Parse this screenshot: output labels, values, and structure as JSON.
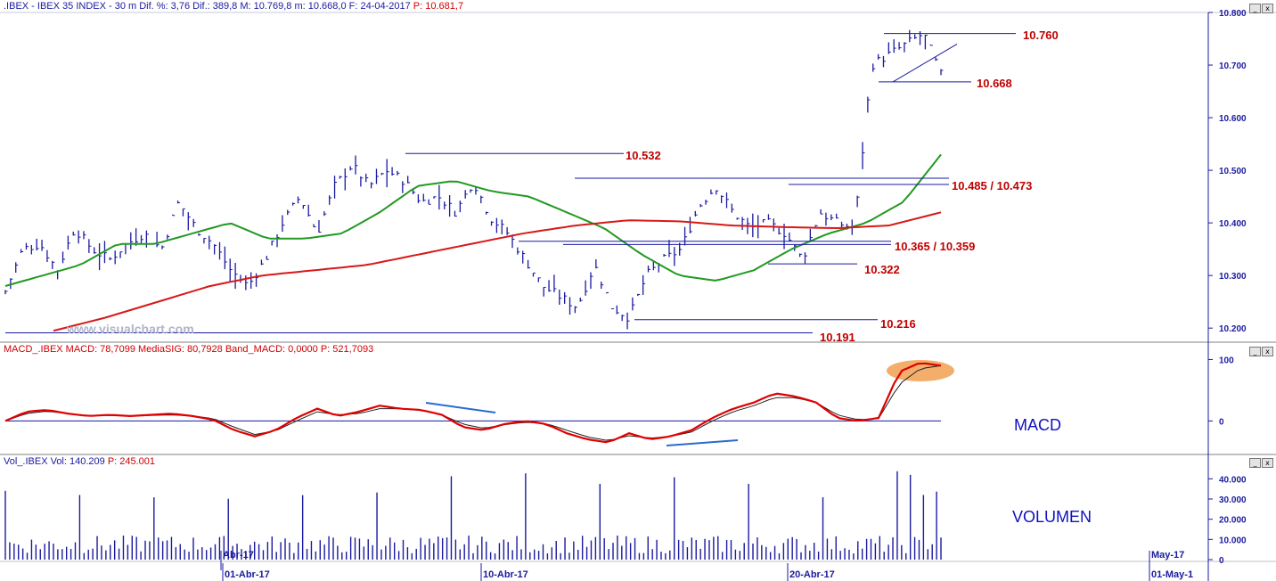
{
  "header": {
    "main": ".IBEX - IBEX 35 INDEX - 30 m Dif. %: 3,76 Dif.: 389,8 M: 10.769,8 m: 10.668,0 F: 24-04-2017",
    "last": "P: 10.681,7",
    "macd": "MACD_.IBEX MACD: 78,7099 MediaSIG: 80,7928 Band_MACD: 0,0000",
    "macd_last": "P: 521,7093",
    "vol": "Vol_.IBEX Vol: 140.209",
    "vol_last": "P: 245.001"
  },
  "watermark": "www.visualchart.com",
  "panel_labels": {
    "macd": "MACD",
    "volume": "VOLUMEN"
  },
  "window_buttons": {
    "minimize": "_",
    "close": "x"
  },
  "colors": {
    "axis": "#1a1aa0",
    "sma_short": "#229922",
    "sma_long": "#d81818",
    "macd": "#e00000",
    "macd_signal": "#222222",
    "annotation": "#c00000",
    "highlight": "#f0a050"
  },
  "chart_data": [
    {
      "type": "line",
      "panel": "price",
      "ylim": [
        10180,
        10800
      ],
      "y_ticks": [
        "10.800",
        "10.700",
        "10.600",
        "10.500",
        "10.400",
        "10.300",
        "10.200"
      ],
      "x_ticks": [
        "Abr-17",
        "01-Abr-17",
        "10-Abr-17",
        "20-Abr-17",
        "May-17",
        "01-May-1"
      ],
      "series": [
        {
          "kind": "ohlc-bars",
          "closes_keypoints": [
            10270,
            10350,
            10360,
            10310,
            10390,
            10350,
            10330,
            10360,
            10380,
            10350,
            10440,
            10390,
            10360,
            10310,
            10280,
            10330,
            10400,
            10450,
            10380,
            10470,
            10510,
            10470,
            10500,
            10480,
            10440,
            10450,
            10420,
            10480,
            10410,
            10380,
            10330,
            10280,
            10260,
            10240,
            10320,
            10240,
            10220,
            10300,
            10330,
            10350,
            10430,
            10470,
            10420,
            10390,
            10400,
            10380,
            10330,
            10420,
            10400,
            10390,
            10700,
            10720,
            10740,
            10760,
            10681.7
          ]
        },
        {
          "kind": "sma",
          "values": [
            10280,
            10300,
            10320,
            10360,
            10360,
            10380,
            10400,
            10370,
            10370,
            10380,
            10420,
            10470,
            10480,
            10460,
            10450,
            10420,
            10390,
            10340,
            10300,
            10290,
            10310,
            10350,
            10380,
            10400,
            10440,
            10530
          ]
        },
        {
          "kind": "sma",
          "values": [
            10195,
            10220,
            10250,
            10280,
            10300,
            10310,
            10320,
            10340,
            10360,
            10380,
            10395,
            10405,
            10403,
            10395,
            10392,
            10390,
            10395,
            10420
          ]
        }
      ],
      "levels": [
        {
          "value": 10760,
          "label": "10.760"
        },
        {
          "value": 10668,
          "label": "10.668"
        },
        {
          "value": 10532,
          "label": "10.532"
        },
        {
          "value": 10485,
          "label": "10.485 / 10.473"
        },
        {
          "value": 10473,
          "label": ""
        },
        {
          "value": 10365,
          "label": "10.365 / 10.359"
        },
        {
          "value": 10359,
          "label": ""
        },
        {
          "value": 10322,
          "label": "10.322"
        },
        {
          "value": 10216,
          "label": "10.216"
        },
        {
          "value": 10191,
          "label": "10.191"
        }
      ]
    },
    {
      "type": "line",
      "panel": "macd",
      "ylim": [
        -40,
        105
      ],
      "y_ticks": [
        "100",
        "0"
      ],
      "series": [
        {
          "kind": "macd",
          "values": [
            0,
            15,
            18,
            12,
            8,
            10,
            8,
            10,
            12,
            8,
            2,
            -15,
            -25,
            -15,
            5,
            20,
            8,
            15,
            25,
            20,
            18,
            10,
            -10,
            -15,
            -5,
            0,
            -5,
            -20,
            -30,
            -35,
            -20,
            -30,
            -25,
            -15,
            5,
            20,
            30,
            45,
            40,
            30,
            5,
            0,
            5,
            80,
            95,
            90
          ]
        },
        {
          "kind": "signal",
          "values": [
            0,
            12,
            16,
            12,
            9,
            9,
            8,
            9,
            10,
            8,
            4,
            -10,
            -22,
            -16,
            0,
            15,
            10,
            12,
            20,
            20,
            17,
            10,
            -5,
            -12,
            -6,
            -2,
            -4,
            -15,
            -26,
            -32,
            -24,
            -28,
            -25,
            -18,
            0,
            15,
            25,
            38,
            38,
            30,
            10,
            2,
            4,
            60,
            85,
            90
          ]
        }
      ]
    },
    {
      "type": "bar",
      "panel": "volume",
      "ylim": [
        0,
        45000
      ],
      "y_ticks": [
        "40.000",
        "30.000",
        "20.000",
        "10.000",
        "0"
      ]
    }
  ]
}
